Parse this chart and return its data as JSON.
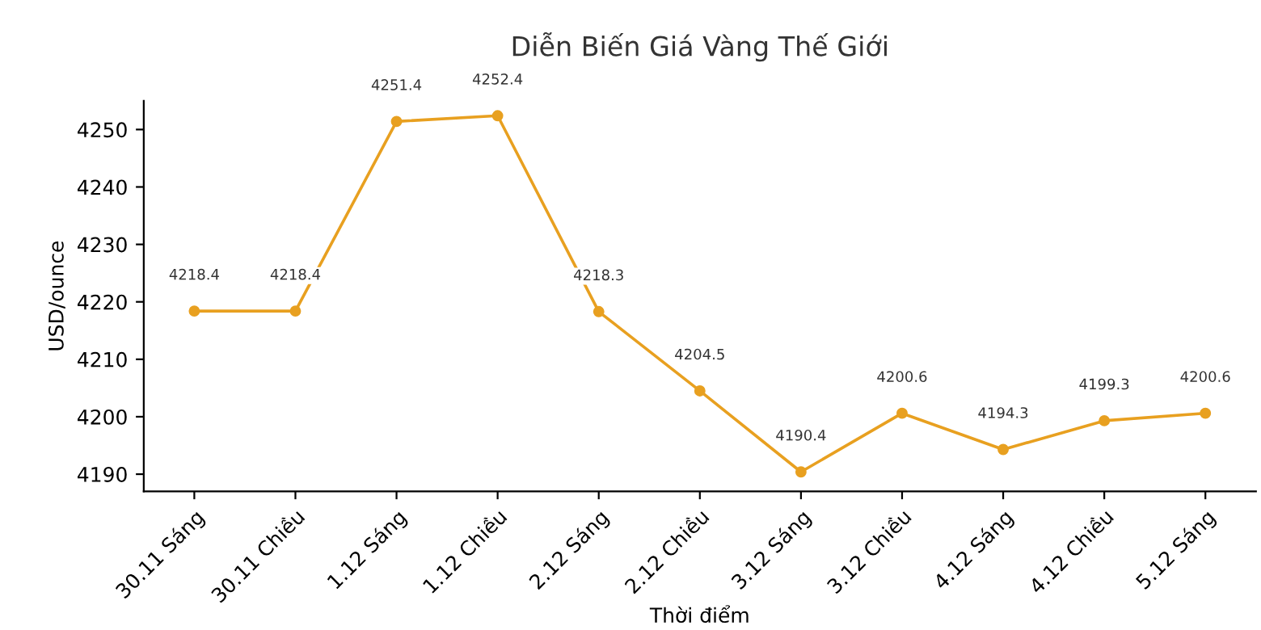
{
  "chart_data": {
    "type": "line",
    "title": "Diễn Biến Giá Vàng Thế Giới",
    "xlabel": "Thời điểm",
    "ylabel": "USD/ounce",
    "categories": [
      "30.11 Sáng",
      "30.11 Chiều",
      "1.12 Sáng",
      "1.12 Chiều",
      "2.12 Sáng",
      "2.12 Chiều",
      "3.12 Sáng",
      "3.12 Chiều",
      "4.12 Sáng",
      "4.12 Chiều",
      "5.12 Sáng"
    ],
    "series": [
      {
        "color": "#e8a020",
        "values": [
          4218.4,
          4218.4,
          4251.4,
          4252.4,
          4218.3,
          4204.5,
          4190.4,
          4200.6,
          4194.3,
          4199.3,
          4200.6
        ]
      }
    ],
    "ylim": [
      4187,
      4255
    ],
    "yticks": [
      4190,
      4200,
      4210,
      4220,
      4230,
      4240,
      4250
    ],
    "marker": "circle",
    "line_style": "solid",
    "data_labels": true,
    "grid": false
  }
}
